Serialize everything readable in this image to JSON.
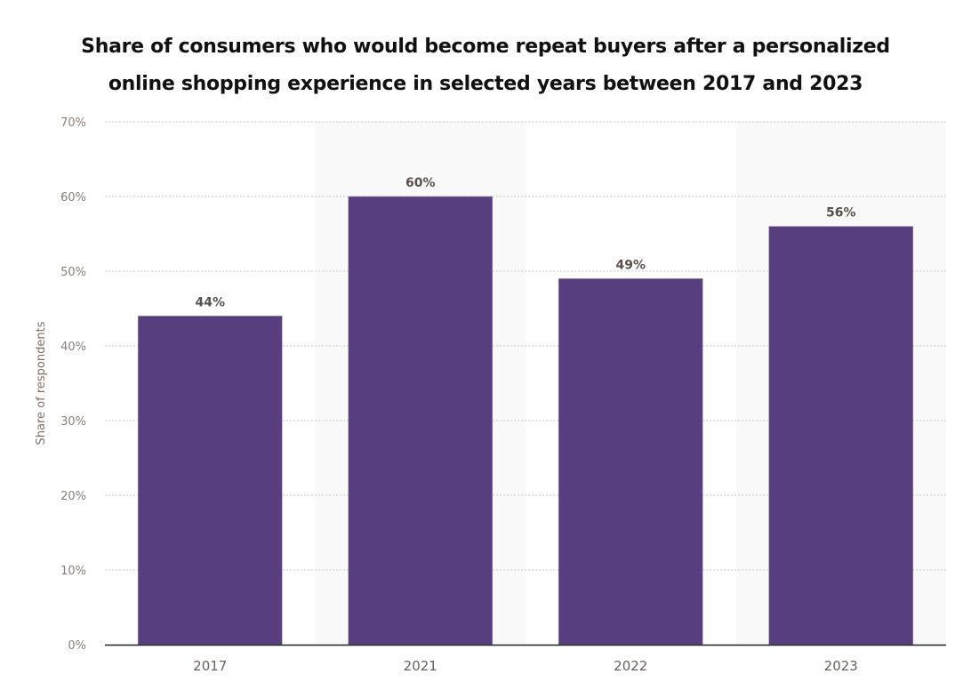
{
  "chart_data": {
    "type": "bar",
    "title_lines": [
      "Share of consumers who would become repeat buyers after a personalized",
      "online shopping experience in selected years between 2017 and 2023"
    ],
    "title": "Share of consumers who would become repeat buyers after a personalized online shopping experience in selected years between 2017 and 2023",
    "categories": [
      "2017",
      "2021",
      "2022",
      "2023"
    ],
    "values": [
      44,
      60,
      49,
      56
    ],
    "data_labels": [
      "44%",
      "60%",
      "49%",
      "56%"
    ],
    "xlabel": "",
    "ylabel": "Share of respondents",
    "ylim": [
      0,
      70
    ],
    "yticks": [
      0,
      10,
      20,
      30,
      40,
      50,
      60,
      70
    ],
    "ytick_labels": [
      "0%",
      "10%",
      "20%",
      "30%",
      "40%",
      "50%",
      "60%",
      "70%"
    ],
    "grid": true,
    "legend": "none",
    "colors": {
      "bar": "#573f7f",
      "band": "#f9f9f9",
      "grid": "#c8c8c8",
      "axis": "#222222"
    }
  }
}
